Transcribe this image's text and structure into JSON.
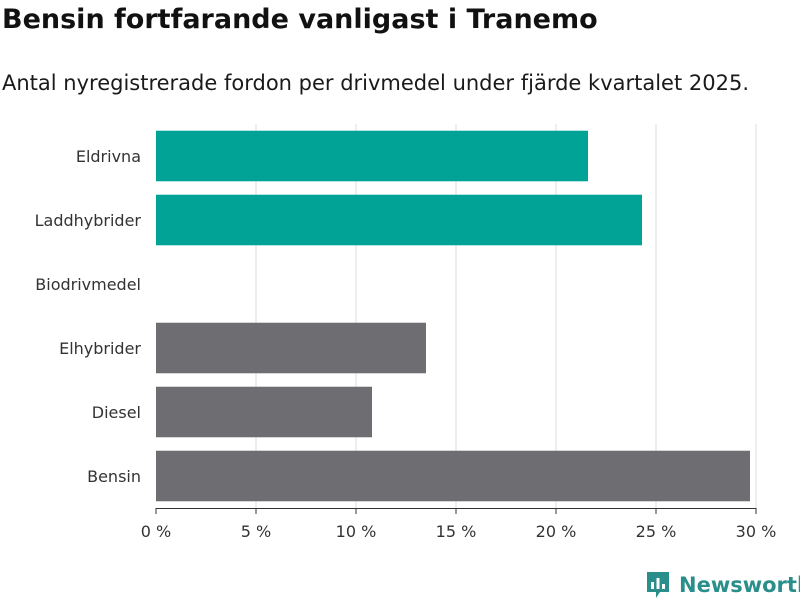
{
  "title": "Bensin fortfarande vanligast i Tranemo",
  "subtitle": "Antal nyregistrerade fordon per drivmedel under fjärde kvartalet 2025.",
  "brand": {
    "name": "Newsworthy",
    "icon": "bar-chart-logo-icon"
  },
  "colors": {
    "highlight": "#00a396",
    "default": "#6e6d72",
    "grid": "#dddddd",
    "axis": "#333333",
    "brand": "#2a8f8a"
  },
  "chart_data": {
    "type": "bar",
    "orientation": "horizontal",
    "title": "Bensin fortfarande vanligast i Tranemo",
    "subtitle": "Antal nyregistrerade fordon per drivmedel under fjärde kvartalet 2025.",
    "categories": [
      "Eldrivna",
      "Laddhybrider",
      "Biodrivmedel",
      "Elhybrider",
      "Diesel",
      "Bensin"
    ],
    "values": [
      21.6,
      24.3,
      0,
      13.5,
      10.8,
      29.7
    ],
    "highlighted": [
      true,
      true,
      false,
      false,
      false,
      false
    ],
    "unit": "%",
    "xlim": [
      0,
      30
    ],
    "xticks": [
      0,
      5,
      10,
      15,
      20,
      25,
      30
    ],
    "xtick_labels": [
      "0 %",
      "5 %",
      "10 %",
      "15 %",
      "20 %",
      "25 %",
      "30 %"
    ],
    "grid": true,
    "xlabel": "",
    "ylabel": ""
  }
}
